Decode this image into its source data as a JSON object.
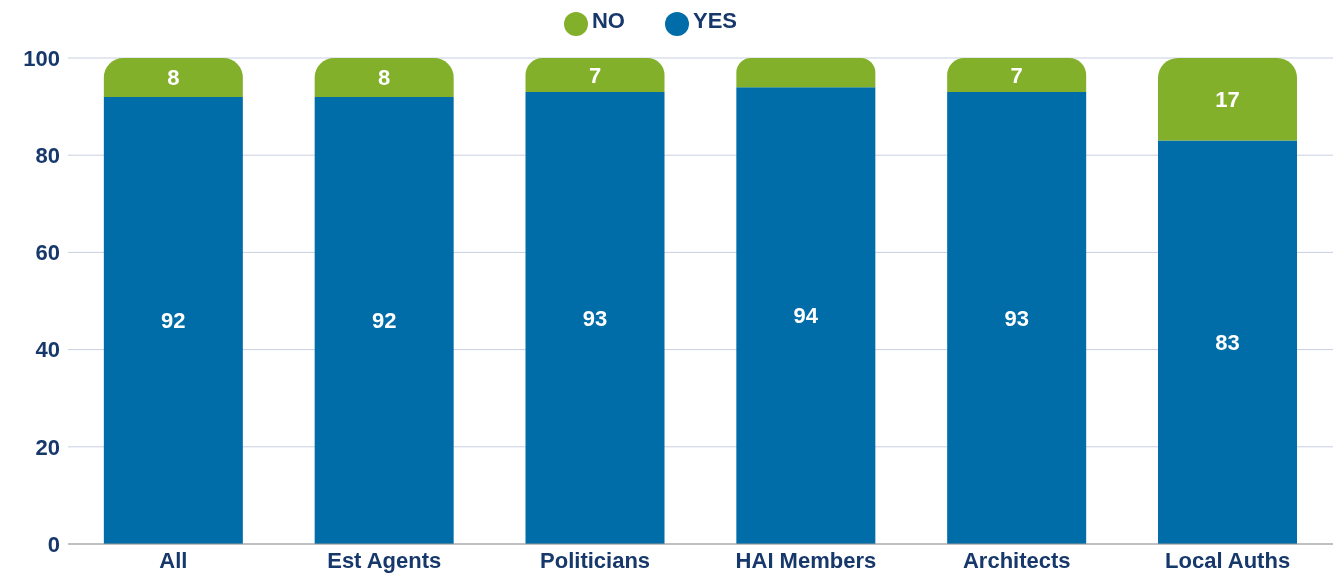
{
  "chart_data": {
    "type": "bar",
    "stacked": true,
    "categories": [
      "All",
      "Est Agents",
      "Politicians",
      "HAI Members",
      "Architects",
      "Local Auths"
    ],
    "series": [
      {
        "name": "YES",
        "color": "#006ca8",
        "values": [
          92,
          92,
          93,
          94,
          93,
          83
        ],
        "value_labels": [
          "92",
          "92",
          "93",
          "94",
          "93",
          "83"
        ]
      },
      {
        "name": "NO",
        "color": "#82b02b",
        "values": [
          8,
          8,
          7,
          6,
          7,
          17
        ],
        "value_labels": [
          "8",
          "8",
          "7",
          null,
          "7",
          "17"
        ]
      }
    ],
    "ylim": [
      0,
      100
    ],
    "yticks": [
      0,
      20,
      40,
      60,
      80,
      100
    ],
    "grid": "y",
    "legend": "top"
  }
}
